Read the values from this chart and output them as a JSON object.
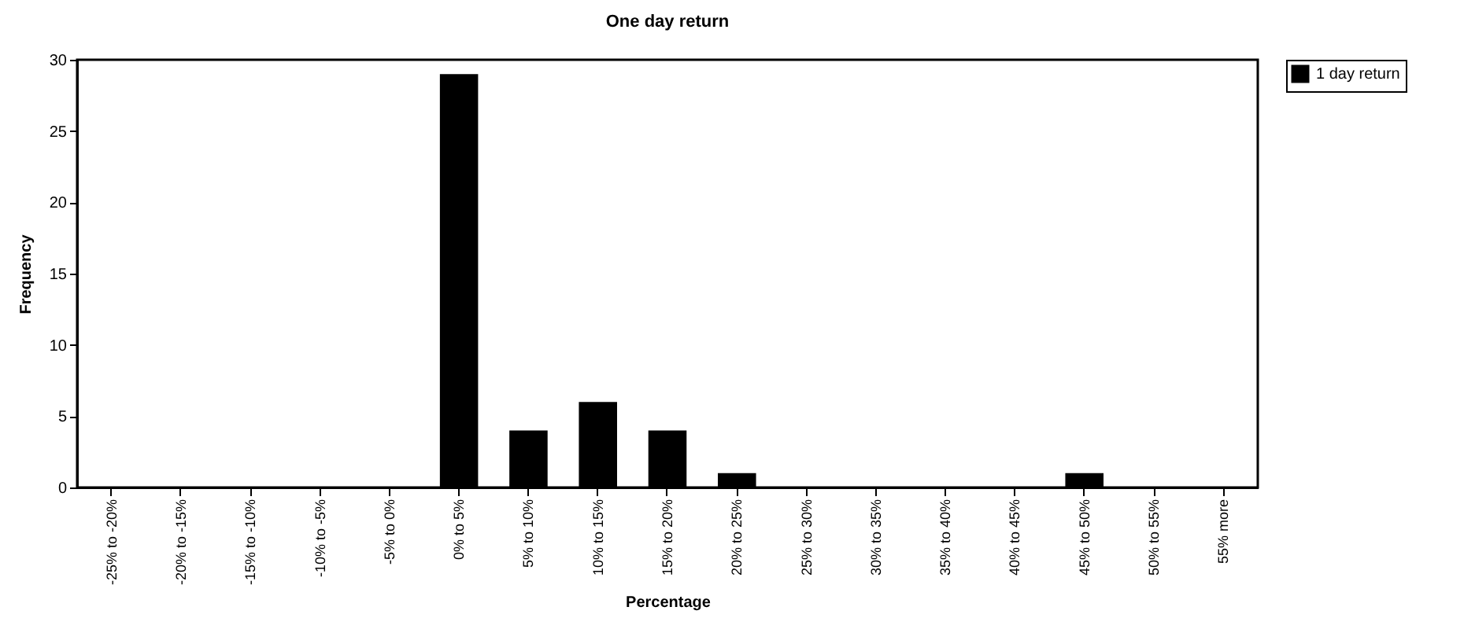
{
  "chart_data": {
    "type": "bar",
    "title": "One day return",
    "xlabel": "Percentage",
    "ylabel": "Frequency",
    "categories": [
      "-25% to -20%",
      "-20% to -15%",
      "-15% to -10%",
      "-10% to -5%",
      "-5% to 0%",
      "0% to 5%",
      "5% to 10%",
      "10% to 15%",
      "15% to 20%",
      "20% to 25%",
      "25% to 30%",
      "30% to 35%",
      "35% to 40%",
      "40% to 45%",
      "45% to 50%",
      "50% to 55%",
      "55% more"
    ],
    "series": [
      {
        "name": "1 day return",
        "color": "#000000",
        "values": [
          0,
          0,
          0,
          0,
          0,
          29,
          4,
          6,
          4,
          1,
          0,
          0,
          0,
          0,
          1,
          0,
          0
        ]
      }
    ],
    "ylim": [
      0,
      30
    ],
    "yticks": [
      0,
      5,
      10,
      15,
      20,
      25,
      30
    ],
    "grid": false,
    "legend": "right"
  }
}
